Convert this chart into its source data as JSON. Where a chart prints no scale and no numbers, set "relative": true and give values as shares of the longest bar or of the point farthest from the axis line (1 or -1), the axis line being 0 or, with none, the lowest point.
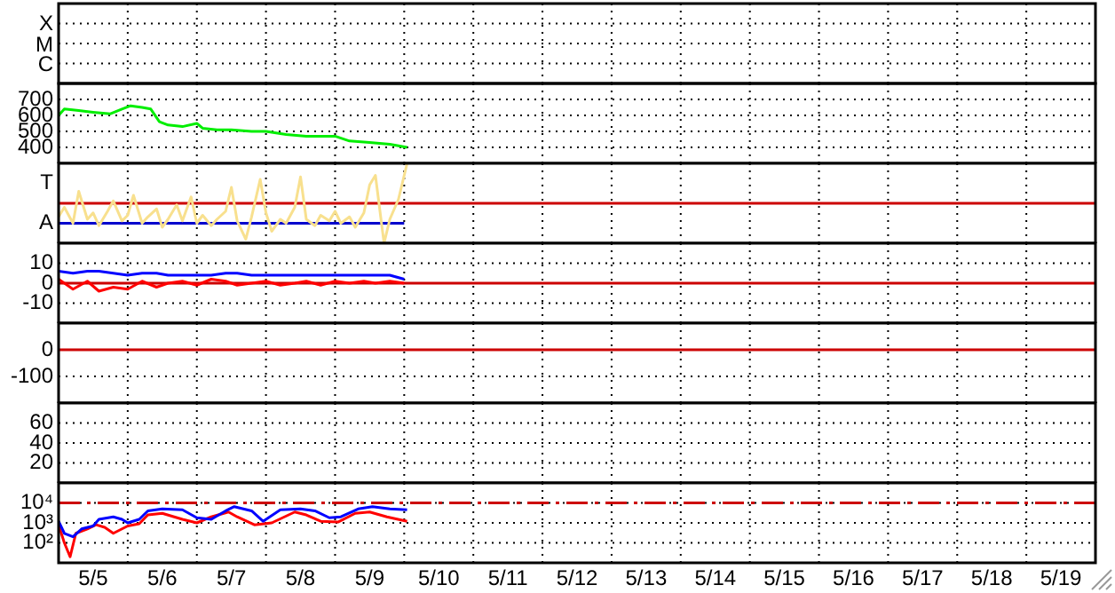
{
  "chart_data": [
    {
      "type": "other",
      "annotations": [
        "X",
        "M",
        "C"
      ]
    },
    {
      "type": "line",
      "tick_labels": "y",
      "grid": true,
      "xlim": [
        "--05-05",
        "--05-20"
      ],
      "xticks": [
        {
          "value": "--05-06",
          "label": null
        },
        {
          "value": "--05-07",
          "label": null
        },
        {
          "value": "--05-08",
          "label": null
        },
        {
          "value": "--05-09",
          "label": null
        },
        {
          "value": "--05-10",
          "label": null
        },
        {
          "value": "--05-11",
          "label": null
        },
        {
          "value": "--05-12",
          "label": null
        },
        {
          "value": "--05-13",
          "label": null
        },
        {
          "value": "--05-14",
          "label": null
        },
        {
          "value": "--05-15",
          "label": null
        },
        {
          "value": "--05-16",
          "label": null
        },
        {
          "value": "--05-17",
          "label": null
        },
        {
          "value": "--05-18",
          "label": null
        },
        {
          "value": "--05-19",
          "label": null
        }
      ],
      "ylim": [
        300,
        800
      ],
      "yticks": [
        400,
        500,
        600,
        700
      ],
      "series": [
        {
          "color": "#00ee00",
          "x": [
            "--05-05T00:00",
            "--05-05T02:00",
            "--05-05T07:00",
            "--05-05T12:00",
            "--05-05T18:00",
            "--05-05T22:00",
            "--05-06T01:00",
            "--05-06T05:00",
            "--05-06T08:00",
            "--05-06T11:00",
            "--05-06T14:00",
            "--05-06T19:00",
            "--05-07T00:00",
            "--05-07T02:00",
            "--05-07T07:00",
            "--05-07T12:00",
            "--05-07T19:00",
            "--05-08T00:00",
            "--05-08T07:00",
            "--05-08T14:00",
            "--05-09T00:00",
            "--05-09T05:00",
            "--05-09T12:00",
            "--05-09T19:00",
            "--05-10T01:00"
          ],
          "values": [
            600,
            640,
            630,
            620,
            610,
            640,
            660,
            650,
            640,
            560,
            540,
            530,
            550,
            520,
            510,
            510,
            500,
            500,
            480,
            470,
            470,
            440,
            430,
            420,
            400
          ]
        }
      ]
    },
    {
      "type": "line",
      "relative": true,
      "tick_labels": "y",
      "grid": true,
      "xlim": [
        "--05-05",
        "--05-20"
      ],
      "xticks": [
        {
          "value": "--05-06",
          "label": null
        },
        {
          "value": "--05-07",
          "label": null
        },
        {
          "value": "--05-08",
          "label": null
        },
        {
          "value": "--05-09",
          "label": null
        },
        {
          "value": "--05-10",
          "label": null
        },
        {
          "value": "--05-11",
          "label": null
        },
        {
          "value": "--05-12",
          "label": null
        },
        {
          "value": "--05-13",
          "label": null
        },
        {
          "value": "--05-14",
          "label": null
        },
        {
          "value": "--05-15",
          "label": null
        },
        {
          "value": "--05-16",
          "label": null
        },
        {
          "value": "--05-17",
          "label": null
        },
        {
          "value": "--05-18",
          "label": null
        },
        {
          "value": "--05-19",
          "label": null
        }
      ],
      "annotations": [
        "T",
        "A"
      ],
      "ref_lines": [
        {
          "axis": "y",
          "value": 0.5,
          "color": "#cc0000"
        }
      ],
      "series": [
        {
          "color": "#f8e08e",
          "x": [
            "--05-05T00:00",
            "--05-05T02:00",
            "--05-05T05:00",
            "--05-05T07:00",
            "--05-05T10:00",
            "--05-05T12:00",
            "--05-05T14:00",
            "--05-05T17:00",
            "--05-05T19:00",
            "--05-05T22:00",
            "--05-06T00:00",
            "--05-06T02:00",
            "--05-06T05:00",
            "--05-06T07:00",
            "--05-06T10:00",
            "--05-06T12:00",
            "--05-06T14:00",
            "--05-06T17:00",
            "--05-06T19:00",
            "--05-06T22:00",
            "--05-07T00:00",
            "--05-07T02:00",
            "--05-07T05:00",
            "--05-07T07:00",
            "--05-07T10:00",
            "--05-07T12:00",
            "--05-07T14:00",
            "--05-07T17:00",
            "--05-07T19:00",
            "--05-07T22:00",
            "--05-08T00:00",
            "--05-08T02:00",
            "--05-08T05:00",
            "--05-08T07:00",
            "--05-08T10:00",
            "--05-08T12:00",
            "--05-08T14:00",
            "--05-08T17:00",
            "--05-08T19:00",
            "--05-08T22:00",
            "--05-09T00:00",
            "--05-09T02:00",
            "--05-09T05:00",
            "--05-09T07:00",
            "--05-09T10:00",
            "--05-09T12:00",
            "--05-09T14:00",
            "--05-09T17:00",
            "--05-09T19:00",
            "--05-09T22:00",
            "--05-10T01:00"
          ],
          "values": [
            0.33,
            0.45,
            0.25,
            0.65,
            0.3,
            0.38,
            0.22,
            0.4,
            0.53,
            0.28,
            0.35,
            0.6,
            0.25,
            0.33,
            0.43,
            0.2,
            0.3,
            0.48,
            0.28,
            0.58,
            0.25,
            0.35,
            0.22,
            0.3,
            0.4,
            0.7,
            0.28,
            0.05,
            0.33,
            0.8,
            0.38,
            0.15,
            0.3,
            0.25,
            0.45,
            0.83,
            0.3,
            0.22,
            0.35,
            0.28,
            0.4,
            0.25,
            0.33,
            0.2,
            0.38,
            0.73,
            0.85,
            0,
            0.3,
            0.55,
            1
          ]
        },
        {
          "color": "#0000cc",
          "x": [
            "--05-05T00:00",
            "--05-10T00:00"
          ],
          "values": [
            0.25,
            0.25
          ]
        }
      ]
    },
    {
      "type": "line",
      "tick_labels": "y",
      "grid": true,
      "xlim": [
        "--05-05",
        "--05-20"
      ],
      "xticks": [
        {
          "value": "--05-06",
          "label": null
        },
        {
          "value": "--05-07",
          "label": null
        },
        {
          "value": "--05-08",
          "label": null
        },
        {
          "value": "--05-09",
          "label": null
        },
        {
          "value": "--05-10",
          "label": null
        },
        {
          "value": "--05-11",
          "label": null
        },
        {
          "value": "--05-12",
          "label": null
        },
        {
          "value": "--05-13",
          "label": null
        },
        {
          "value": "--05-14",
          "label": null
        },
        {
          "value": "--05-15",
          "label": null
        },
        {
          "value": "--05-16",
          "label": null
        },
        {
          "value": "--05-17",
          "label": null
        },
        {
          "value": "--05-18",
          "label": null
        },
        {
          "value": "--05-19",
          "label": null
        }
      ],
      "ylim": [
        -20,
        20
      ],
      "yticks": [
        -10,
        0,
        10
      ],
      "ref_lines": [
        {
          "axis": "y",
          "value": 0,
          "color": "#cc0000"
        }
      ],
      "series": [
        {
          "color": "#0000ff",
          "x": [
            "--05-05T00:00",
            "--05-05T05:00",
            "--05-05T10:00",
            "--05-05T14:00",
            "--05-05T19:00",
            "--05-06T00:00",
            "--05-06T05:00",
            "--05-06T10:00",
            "--05-06T14:00",
            "--05-06T19:00",
            "--05-07T00:00",
            "--05-07T05:00",
            "--05-07T10:00",
            "--05-07T14:00",
            "--05-07T19:00",
            "--05-08T00:00",
            "--05-08T05:00",
            "--05-08T10:00",
            "--05-08T14:00",
            "--05-08T19:00",
            "--05-09T00:00",
            "--05-09T05:00",
            "--05-09T10:00",
            "--05-09T14:00",
            "--05-09T19:00",
            "--05-10T00:00"
          ],
          "values": [
            6,
            5,
            6,
            6,
            5,
            4,
            5,
            5,
            4,
            4,
            4,
            4,
            5,
            5,
            4,
            4,
            4,
            4,
            4,
            4,
            4,
            4,
            4,
            4,
            4,
            2
          ]
        },
        {
          "color": "#ff0000",
          "x": [
            "--05-05T00:00",
            "--05-05T05:00",
            "--05-05T10:00",
            "--05-05T14:00",
            "--05-05T19:00",
            "--05-06T00:00",
            "--05-06T05:00",
            "--05-06T10:00",
            "--05-06T14:00",
            "--05-06T19:00",
            "--05-07T00:00",
            "--05-07T05:00",
            "--05-07T10:00",
            "--05-07T14:00",
            "--05-07T19:00",
            "--05-08T00:00",
            "--05-08T05:00",
            "--05-08T10:00",
            "--05-08T14:00",
            "--05-08T19:00",
            "--05-09T00:00",
            "--05-09T05:00",
            "--05-09T10:00",
            "--05-09T14:00",
            "--05-09T19:00",
            "--05-10T00:00"
          ],
          "values": [
            2,
            -3,
            1,
            -4,
            -2,
            -3,
            1,
            -2,
            0,
            1,
            -1,
            2,
            1,
            -1,
            0,
            1,
            -1,
            0,
            1,
            -1,
            1,
            0,
            1,
            0,
            1,
            0
          ]
        }
      ]
    },
    {
      "type": "line",
      "tick_labels": "y",
      "grid": true,
      "xlim": [
        "--05-05",
        "--05-20"
      ],
      "xticks": [
        {
          "value": "--05-06",
          "label": null
        },
        {
          "value": "--05-07",
          "label": null
        },
        {
          "value": "--05-08",
          "label": null
        },
        {
          "value": "--05-09",
          "label": null
        },
        {
          "value": "--05-10",
          "label": null
        },
        {
          "value": "--05-11",
          "label": null
        },
        {
          "value": "--05-12",
          "label": null
        },
        {
          "value": "--05-13",
          "label": null
        },
        {
          "value": "--05-14",
          "label": null
        },
        {
          "value": "--05-15",
          "label": null
        },
        {
          "value": "--05-16",
          "label": null
        },
        {
          "value": "--05-17",
          "label": null
        },
        {
          "value": "--05-18",
          "label": null
        },
        {
          "value": "--05-19",
          "label": null
        }
      ],
      "ylim": [
        -200,
        100
      ],
      "yticks": [
        -100,
        0
      ],
      "ref_lines": [
        {
          "axis": "y",
          "value": 0,
          "color": "#cc0000"
        }
      ]
    },
    {
      "type": "line",
      "tick_labels": "y",
      "grid": true,
      "xlim": [
        "--05-05",
        "--05-20"
      ],
      "xticks": [
        {
          "value": "--05-06",
          "label": null
        },
        {
          "value": "--05-07",
          "label": null
        },
        {
          "value": "--05-08",
          "label": null
        },
        {
          "value": "--05-09",
          "label": null
        },
        {
          "value": "--05-10",
          "label": null
        },
        {
          "value": "--05-11",
          "label": null
        },
        {
          "value": "--05-12",
          "label": null
        },
        {
          "value": "--05-13",
          "label": null
        },
        {
          "value": "--05-14",
          "label": null
        },
        {
          "value": "--05-15",
          "label": null
        },
        {
          "value": "--05-16",
          "label": null
        },
        {
          "value": "--05-17",
          "label": null
        },
        {
          "value": "--05-18",
          "label": null
        },
        {
          "value": "--05-19",
          "label": null
        }
      ],
      "ylim": [
        0,
        80
      ],
      "yticks": [
        20,
        40,
        60
      ]
    },
    {
      "type": "line",
      "log": "y",
      "grid": true,
      "xlim": [
        "--05-05",
        "--05-20"
      ],
      "xticks": [
        {
          "value": "--05-05T12:00",
          "label": "5/5"
        },
        {
          "value": "--05-06",
          "label": null
        },
        {
          "value": "--05-06T12:00",
          "label": "5/6"
        },
        {
          "value": "--05-07",
          "label": null
        },
        {
          "value": "--05-07T12:00",
          "label": "5/7"
        },
        {
          "value": "--05-08",
          "label": null
        },
        {
          "value": "--05-08T12:00",
          "label": "5/8"
        },
        {
          "value": "--05-09",
          "label": null
        },
        {
          "value": "--05-09T12:00",
          "label": "5/9"
        },
        {
          "value": "--05-10",
          "label": null
        },
        {
          "value": "--05-10T12:00",
          "label": "5/10"
        },
        {
          "value": "--05-11",
          "label": null
        },
        {
          "value": "--05-11T12:00",
          "label": "5/11"
        },
        {
          "value": "--05-12",
          "label": null
        },
        {
          "value": "--05-12T12:00",
          "label": "5/12"
        },
        {
          "value": "--05-13",
          "label": null
        },
        {
          "value": "--05-13T12:00",
          "label": "5/13"
        },
        {
          "value": "--05-14",
          "label": null
        },
        {
          "value": "--05-14T12:00",
          "label": "5/14"
        },
        {
          "value": "--05-15",
          "label": null
        },
        {
          "value": "--05-15T12:00",
          "label": "5/15"
        },
        {
          "value": "--05-16",
          "label": null
        },
        {
          "value": "--05-16T12:00",
          "label": "5/16"
        },
        {
          "value": "--05-17",
          "label": null
        },
        {
          "value": "--05-17T12:00",
          "label": "5/17"
        },
        {
          "value": "--05-18",
          "label": null
        },
        {
          "value": "--05-18T12:00",
          "label": "5/18"
        },
        {
          "value": "--05-19",
          "label": null
        },
        {
          "value": "--05-19T12:00",
          "label": "5/19"
        }
      ],
      "ylim": [
        10,
        100000
      ],
      "yticks": [
        {
          "value": 100,
          "label": "10²"
        },
        {
          "value": 1000,
          "label": "10³"
        },
        {
          "value": 10000,
          "label": "10⁴"
        }
      ],
      "ref_lines": [
        {
          "axis": "y",
          "value": 10000,
          "color": "#cc0000",
          "line_style": "dashed"
        }
      ],
      "series": [
        {
          "color": "#0000ff",
          "x": [
            "--05-05T00:00",
            "--05-05T02:00",
            "--05-05T05:00",
            "--05-05T08:00",
            "--05-05T12:00",
            "--05-05T14:00",
            "--05-05T19:00",
            "--05-05T22:00",
            "--05-06T00:00",
            "--05-06T04:00",
            "--05-06T07:00",
            "--05-06T12:00",
            "--05-06T19:00",
            "--05-07T00:00",
            "--05-07T05:00",
            "--05-07T10:00",
            "--05-07T13:00",
            "--05-07T19:00",
            "--05-07T23:00",
            "--05-08T05:00",
            "--05-08T12:00",
            "--05-08T17:00",
            "--05-08T22:00",
            "--05-09T02:00",
            "--05-09T08:00",
            "--05-09T13:00",
            "--05-09T19:00",
            "--05-10T01:00"
          ],
          "values": [
            1200,
            300,
            200,
            500,
            700,
            1500,
            2000,
            1500,
            1000,
            1500,
            4000,
            5000,
            4500,
            1800,
            1500,
            4000,
            6500,
            4000,
            1200,
            4500,
            5000,
            4000,
            1800,
            2000,
            5000,
            6500,
            5000,
            4500
          ]
        },
        {
          "color": "#ff0000",
          "x": [
            "--05-05T00:00",
            "--05-05T02:00",
            "--05-05T04:00",
            "--05-05T06:00",
            "--05-05T10:00",
            "--05-05T13:00",
            "--05-05T16:00",
            "--05-05T19:00",
            "--05-06T00:00",
            "--05-06T04:00",
            "--05-06T07:00",
            "--05-06T12:00",
            "--05-06T19:00",
            "--05-07T00:00",
            "--05-07T05:00",
            "--05-07T11:00",
            "--05-07T14:00",
            "--05-07T20:00",
            "--05-08T02:00",
            "--05-08T10:00",
            "--05-08T14:00",
            "--05-08T19:00",
            "--05-09T01:00",
            "--05-09T07:00",
            "--05-09T12:00",
            "--05-09T18:00",
            "--05-10T01:00"
          ],
          "values": [
            800,
            100,
            20,
            300,
            500,
            800,
            600,
            300,
            700,
            900,
            2500,
            3000,
            1500,
            1000,
            2000,
            3500,
            2000,
            800,
            1000,
            3500,
            2500,
            1200,
            1100,
            3000,
            3500,
            2000,
            1200
          ]
        }
      ]
    }
  ]
}
